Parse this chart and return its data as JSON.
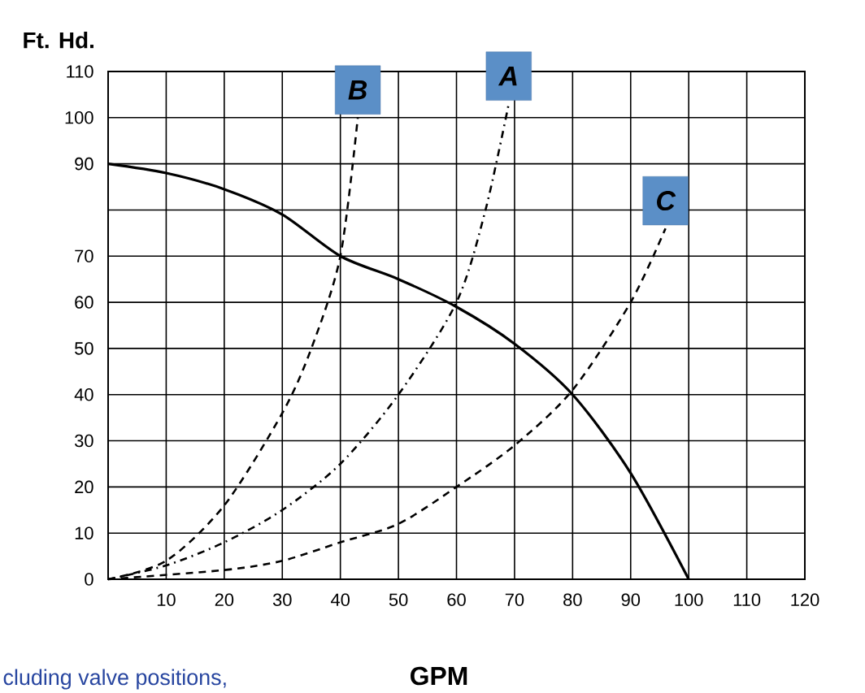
{
  "chart_data": {
    "type": "line",
    "xlabel": "GPM",
    "ylabel": "Ft. Hd.",
    "annotations": [
      "cluding valve positions,"
    ],
    "xlim": [
      0,
      120
    ],
    "xticks": [
      10,
      20,
      30,
      40,
      50,
      60,
      70,
      80,
      90,
      100,
      110,
      120
    ],
    "ylim": [
      0,
      110
    ],
    "yticks": [
      0,
      10,
      20,
      30,
      40,
      50,
      60,
      70,
      {
        "value": 80,
        "label": null
      },
      90,
      100,
      110
    ],
    "grid": true,
    "marker": "none",
    "series": [
      {
        "color": "#000000",
        "line_style": "solid",
        "x": [
          0,
          10,
          20,
          30,
          40,
          50,
          60,
          70,
          80,
          90,
          100
        ],
        "values": [
          90,
          88,
          84.5,
          79,
          70,
          65,
          59,
          51,
          40,
          23,
          0
        ]
      },
      {
        "name": "B",
        "color": "#000000",
        "line_style": "dashed",
        "x": [
          0,
          10,
          20,
          30,
          35,
          40,
          43
        ],
        "values": [
          0,
          4,
          16,
          36,
          50,
          70,
          100
        ]
      },
      {
        "name": "A",
        "color": "#000000",
        "line_style": "dashdot",
        "x": [
          0,
          10,
          20,
          30,
          40,
          50,
          60,
          65,
          69
        ],
        "values": [
          0,
          3,
          8,
          15,
          25,
          40,
          60,
          80,
          103
        ]
      },
      {
        "name": "C",
        "color": "#000000",
        "line_style": "dashed",
        "x": [
          0,
          20,
          30,
          40,
          50,
          60,
          70,
          80,
          90,
          96
        ],
        "values": [
          0,
          2,
          4,
          8,
          12,
          20,
          29,
          41,
          60,
          76
        ]
      }
    ]
  }
}
